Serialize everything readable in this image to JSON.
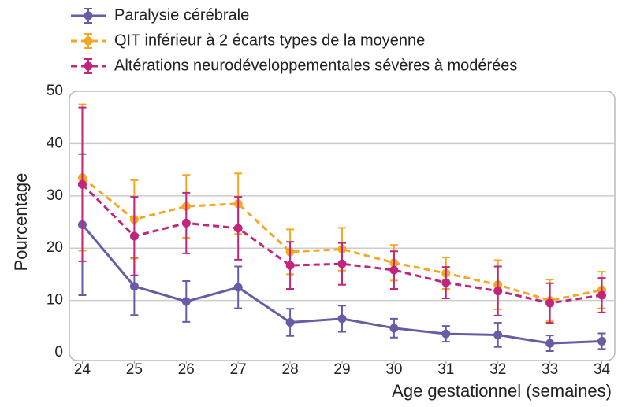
{
  "chart_data": {
    "type": "line",
    "xlabel": "Age gestationnel (semaines)",
    "ylabel": "Pourcentage",
    "x": [
      24,
      25,
      26,
      27,
      28,
      29,
      30,
      31,
      32,
      33,
      34
    ],
    "xlim": [
      23.75,
      34.25
    ],
    "xticks": [
      24,
      25,
      26,
      27,
      28,
      29,
      30,
      31,
      32,
      33,
      34
    ],
    "ylim": [
      -1.5,
      50
    ],
    "yticks": [
      0,
      10,
      20,
      30,
      40,
      50
    ],
    "grid": true,
    "legend": "top-left",
    "series": [
      {
        "name": "Paralysie cérébrale",
        "color": "#6b5aa6",
        "style": "solid",
        "values": [
          24.5,
          12.7,
          9.8,
          12.5,
          5.8,
          6.5,
          4.7,
          3.6,
          3.4,
          1.8,
          2.2
        ],
        "errors": [
          13.5,
          5.5,
          3.9,
          4,
          2.6,
          2.5,
          1.8,
          1.5,
          2.3,
          1.5,
          1.5
        ]
      },
      {
        "name": "QIT inférieur à 2 écarts types de la moyenne",
        "color": "#f5a623",
        "style": "dashed",
        "values": [
          33.5,
          25.5,
          28,
          28.5,
          19.3,
          19.8,
          17.2,
          15.2,
          13,
          10,
          12
        ],
        "errors": [
          14,
          7.5,
          6,
          5.8,
          4.3,
          4.1,
          3.4,
          3,
          4.7,
          4,
          3.5
        ]
      },
      {
        "name": "Altérations neurodéveloppementales sévères à modérées",
        "color": "#c2257c",
        "style": "dashed",
        "values": [
          32.2,
          22.3,
          24.8,
          23.8,
          16.7,
          17,
          15.8,
          13.4,
          11.8,
          9.5,
          11
        ],
        "errors": [
          14.7,
          7.5,
          5.8,
          6,
          4.5,
          4,
          3.6,
          3,
          4.7,
          3.8,
          3.3
        ]
      }
    ]
  }
}
